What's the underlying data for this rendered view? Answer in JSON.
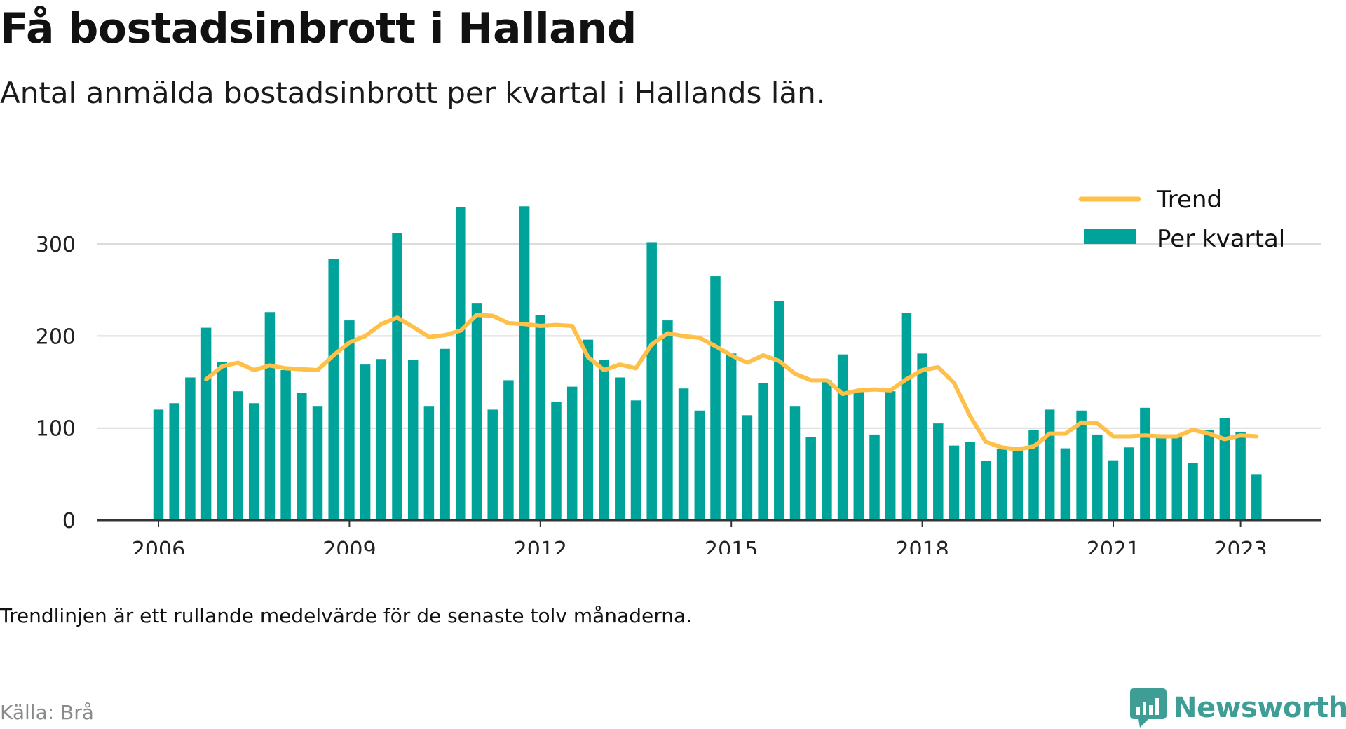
{
  "header": {
    "title": "Få bostadsinbrott i Halland",
    "subtitle": "Antal anmälda bostadsinbrott per kvartal i Hallands län."
  },
  "footer": {
    "note": "Trendlinjen är ett rullande medelvärde för de senaste tolv månaderna.",
    "source": "Källa: Brå",
    "brand": "Newsworthy"
  },
  "colors": {
    "bar": "#00a39a",
    "trend": "#ffc04a",
    "grid": "#d9d9d9",
    "axis": "#333333",
    "brand": "#3e9e95"
  },
  "icons": {
    "brand_logo": "newsworthy-chart-bubble-icon"
  },
  "chart_data": {
    "type": "bar",
    "title": "",
    "xlabel": "",
    "ylabel": "",
    "ylim": [
      0,
      340
    ],
    "yticks": [
      0,
      100,
      200,
      300
    ],
    "xtick_labels": [
      "2006",
      "2009",
      "2012",
      "2015",
      "2018",
      "2021",
      "2023"
    ],
    "grid": "horizontal",
    "legend_position": "top-right",
    "categories": [
      "2006 Q1",
      "2006 Q2",
      "2006 Q3",
      "2006 Q4",
      "2007 Q1",
      "2007 Q2",
      "2007 Q3",
      "2007 Q4",
      "2008 Q1",
      "2008 Q2",
      "2008 Q3",
      "2008 Q4",
      "2009 Q1",
      "2009 Q2",
      "2009 Q3",
      "2009 Q4",
      "2010 Q1",
      "2010 Q2",
      "2010 Q3",
      "2010 Q4",
      "2011 Q1",
      "2011 Q2",
      "2011 Q3",
      "2011 Q4",
      "2012 Q1",
      "2012 Q2",
      "2012 Q3",
      "2012 Q4",
      "2013 Q1",
      "2013 Q2",
      "2013 Q3",
      "2013 Q4",
      "2014 Q1",
      "2014 Q2",
      "2014 Q3",
      "2014 Q4",
      "2015 Q1",
      "2015 Q2",
      "2015 Q3",
      "2015 Q4",
      "2016 Q1",
      "2016 Q2",
      "2016 Q3",
      "2016 Q4",
      "2017 Q1",
      "2017 Q2",
      "2017 Q3",
      "2017 Q4",
      "2018 Q1",
      "2018 Q2",
      "2018 Q3",
      "2018 Q4",
      "2019 Q1",
      "2019 Q2",
      "2019 Q3",
      "2019 Q4",
      "2020 Q1",
      "2020 Q2",
      "2020 Q3",
      "2020 Q4",
      "2021 Q1",
      "2021 Q2",
      "2021 Q3",
      "2021 Q4",
      "2022 Q1",
      "2022 Q2",
      "2022 Q3",
      "2022 Q4",
      "2023 Q1",
      "2023 Q2"
    ],
    "series": [
      {
        "name": "Per kvartal",
        "type": "bar",
        "values": [
          120,
          127,
          155,
          209,
          172,
          140,
          127,
          226,
          163,
          138,
          124,
          284,
          217,
          169,
          175,
          312,
          174,
          124,
          186,
          340,
          236,
          120,
          152,
          341,
          223,
          128,
          145,
          196,
          174,
          155,
          130,
          302,
          217,
          143,
          119,
          265,
          181,
          114,
          149,
          238,
          124,
          90,
          152,
          180,
          140,
          93,
          140,
          225,
          181,
          105,
          81,
          85,
          64,
          77,
          76,
          98,
          120,
          78,
          119,
          93,
          65,
          79,
          122,
          92,
          90,
          62,
          98,
          111,
          96,
          50
        ]
      },
      {
        "name": "Trend",
        "type": "line",
        "values": [
          null,
          null,
          null,
          153,
          167,
          171,
          163,
          168,
          165,
          164,
          163,
          179,
          193,
          200,
          213,
          220,
          210,
          199,
          201,
          206,
          223,
          222,
          214,
          213,
          211,
          212,
          211,
          177,
          163,
          169,
          165,
          191,
          203,
          200,
          198,
          189,
          179,
          171,
          179,
          173,
          159,
          152,
          152,
          137,
          141,
          142,
          141,
          153,
          163,
          166,
          149,
          113,
          85,
          79,
          77,
          80,
          94,
          94,
          106,
          105,
          91,
          91,
          92,
          91,
          91,
          98,
          94,
          88,
          92,
          91
        ]
      }
    ]
  }
}
